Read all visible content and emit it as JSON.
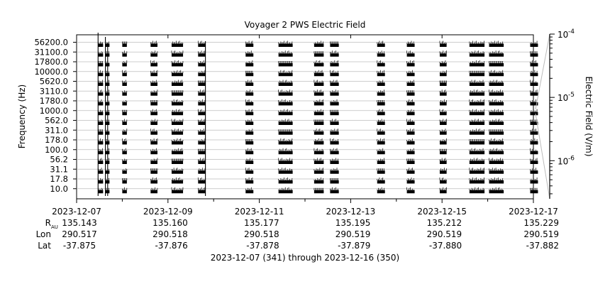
{
  "chart_data": {
    "type": "heatmap",
    "title": "Voyager 2 PWS Electric Field",
    "ylabel": "Frequency (Hz)",
    "colorbar_label": "Electric Field (V/m)",
    "colorbar_ticks": [
      {
        "base": "10",
        "exp": "-4"
      },
      {
        "base": "10",
        "exp": "-5"
      },
      {
        "base": "10",
        "exp": "-6"
      }
    ],
    "colorbar_range": [
      2.5e-07,
      0.0001
    ],
    "y_scale": "log",
    "y_ticks": [
      "56200.0",
      "31100.0",
      "17800.0",
      "10000.0",
      "5620.0",
      "3110.0",
      "1780.0",
      "1000.0",
      "562.0",
      "311.0",
      "178.0",
      "100.0",
      "56.2",
      "31.1",
      "17.8",
      "10.0"
    ],
    "x_range": [
      "2023-12-07",
      "2023-12-17"
    ],
    "x_tick_labels": [
      "2023-12-07",
      "2023-12-09",
      "2023-12-11",
      "2023-12-13",
      "2023-12-15",
      "2023-12-17"
    ],
    "x_ticks_days": [
      0,
      2,
      4,
      6,
      8,
      10
    ],
    "x_minor_ticks_days": [
      1,
      3,
      5,
      7,
      9
    ],
    "ephemeris": {
      "rows": [
        {
          "label": "R",
          "sub": "AU",
          "values": [
            "135.143",
            "135.160",
            "135.177",
            "135.195",
            "135.212",
            "135.229"
          ]
        },
        {
          "label": "Lon",
          "sub": "",
          "values": [
            "290.517",
            "290.518",
            "290.518",
            "290.519",
            "290.519",
            "290.519"
          ]
        },
        {
          "label": "Lat",
          "sub": "",
          "values": [
            "-37.875",
            "-37.876",
            "-37.878",
            "-37.879",
            "-37.880",
            "-37.882"
          ]
        }
      ]
    },
    "footer": "2023-12-07 (341) through 2023-12-16 (350)",
    "observation_blocks_days": [
      [
        0.47,
        0.58
      ],
      [
        0.63,
        0.72
      ],
      [
        1.0,
        1.1
      ],
      [
        1.62,
        1.77
      ],
      [
        2.08,
        2.33
      ],
      [
        2.66,
        2.82
      ],
      [
        3.7,
        3.87
      ],
      [
        4.42,
        4.73
      ],
      [
        5.2,
        5.41
      ],
      [
        5.55,
        5.74
      ],
      [
        6.58,
        6.75
      ],
      [
        7.23,
        7.4
      ],
      [
        7.95,
        8.1
      ],
      [
        8.6,
        8.93
      ],
      [
        9.03,
        9.35
      ],
      [
        9.93,
        10.1
      ]
    ],
    "grid": true,
    "legend": "colorbar-right"
  }
}
